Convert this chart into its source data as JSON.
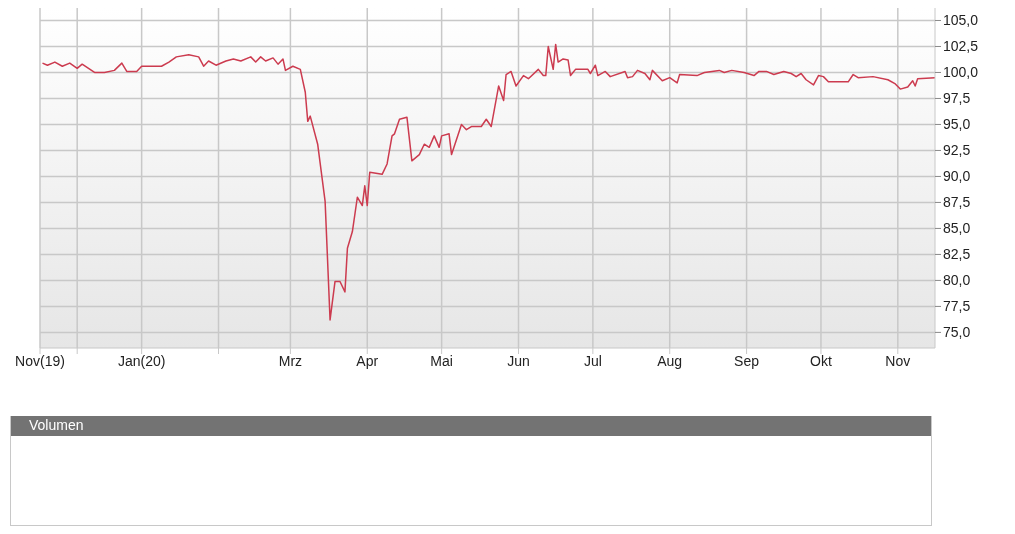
{
  "chart_data": [
    {
      "type": "line",
      "color": "#cc3b4f",
      "line_style": "solid",
      "marker": "none",
      "grid": true,
      "legend": false,
      "x": [
        "2019-11-22",
        "2019-11-24",
        "2019-11-27",
        "2019-11-30",
        "2019-12-03",
        "2019-12-06",
        "2019-12-08",
        "2019-12-13",
        "2019-12-17",
        "2019-12-21",
        "2019-12-24",
        "2019-12-26",
        "2019-12-30",
        "2020-01-01",
        "2020-01-06",
        "2020-01-09",
        "2020-01-12",
        "2020-01-15",
        "2020-01-20",
        "2020-01-24",
        "2020-01-26",
        "2020-01-28",
        "2020-01-31",
        "2020-02-04",
        "2020-02-07",
        "2020-02-10",
        "2020-02-14",
        "2020-02-16",
        "2020-02-18",
        "2020-02-20",
        "2020-02-23",
        "2020-02-25",
        "2020-02-27",
        "2020-02-28",
        "2020-03-02",
        "2020-03-05",
        "2020-03-07",
        "2020-03-08",
        "2020-03-09",
        "2020-03-12",
        "2020-03-15",
        "2020-03-17",
        "2020-03-19",
        "2020-03-21",
        "2020-03-23",
        "2020-03-24",
        "2020-03-26",
        "2020-03-28",
        "2020-03-30",
        "2020-03-31",
        "2020-04-01",
        "2020-04-02",
        "2020-04-07",
        "2020-04-09",
        "2020-04-11",
        "2020-04-12",
        "2020-04-14",
        "2020-04-17",
        "2020-04-19",
        "2020-04-22",
        "2020-04-24",
        "2020-04-26",
        "2020-04-28",
        "2020-04-30",
        "2020-05-01",
        "2020-05-04",
        "2020-05-05",
        "2020-05-09",
        "2020-05-11",
        "2020-05-13",
        "2020-05-17",
        "2020-05-19",
        "2020-05-21",
        "2020-05-24",
        "2020-05-26",
        "2020-05-27",
        "2020-05-29",
        "2020-05-31",
        "2020-06-03",
        "2020-06-05",
        "2020-06-09",
        "2020-06-11",
        "2020-06-12",
        "2020-06-13",
        "2020-06-15",
        "2020-06-16",
        "2020-06-17",
        "2020-06-19",
        "2020-06-21",
        "2020-06-22",
        "2020-06-24",
        "2020-06-29",
        "2020-06-30",
        "2020-07-02",
        "2020-07-03",
        "2020-07-06",
        "2020-07-08",
        "2020-07-14",
        "2020-07-15",
        "2020-07-17",
        "2020-07-19",
        "2020-07-22",
        "2020-07-24",
        "2020-07-25",
        "2020-07-29",
        "2020-08-01",
        "2020-08-04",
        "2020-08-05",
        "2020-08-12",
        "2020-08-15",
        "2020-08-21",
        "2020-08-23",
        "2020-08-26",
        "2020-08-31",
        "2020-09-04",
        "2020-09-06",
        "2020-09-09",
        "2020-09-12",
        "2020-09-16",
        "2020-09-19",
        "2020-09-21",
        "2020-09-23",
        "2020-09-25",
        "2020-09-28",
        "2020-09-30",
        "2020-10-02",
        "2020-10-04",
        "2020-10-12",
        "2020-10-14",
        "2020-10-16",
        "2020-10-22",
        "2020-10-28",
        "2020-10-31",
        "2020-11-02",
        "2020-11-05",
        "2020-11-07",
        "2020-11-08",
        "2020-11-09",
        "2020-11-16"
      ],
      "values": [
        100.9,
        100.7,
        101.0,
        100.6,
        100.9,
        100.4,
        100.8,
        100.0,
        100.0,
        100.2,
        100.9,
        100.1,
        100.1,
        100.6,
        100.6,
        100.6,
        101.0,
        101.5,
        101.7,
        101.5,
        100.6,
        101.1,
        100.7,
        101.1,
        101.3,
        101.1,
        101.5,
        101.0,
        101.5,
        101.1,
        101.4,
        100.8,
        101.3,
        100.2,
        100.6,
        100.3,
        98.1,
        95.3,
        95.8,
        93.1,
        87.6,
        76.2,
        79.9,
        79.9,
        78.9,
        83.1,
        84.7,
        88.0,
        87.2,
        89.1,
        87.2,
        90.4,
        90.2,
        91.2,
        93.9,
        94.1,
        95.5,
        95.7,
        91.5,
        92.1,
        93.1,
        92.8,
        93.9,
        92.8,
        93.9,
        94.1,
        92.1,
        95.0,
        94.5,
        94.8,
        94.8,
        95.5,
        94.8,
        98.7,
        97.3,
        99.8,
        100.1,
        98.7,
        99.7,
        99.4,
        100.3,
        99.7,
        99.7,
        102.5,
        100.3,
        102.7,
        101.0,
        101.3,
        101.2,
        99.7,
        100.3,
        100.3,
        99.9,
        100.7,
        99.7,
        100.1,
        99.6,
        100.1,
        99.5,
        99.6,
        100.2,
        99.9,
        99.3,
        100.2,
        99.2,
        99.5,
        99.0,
        99.8,
        99.7,
        100.0,
        100.2,
        100.0,
        100.2,
        100.0,
        99.7,
        100.1,
        100.1,
        99.8,
        100.1,
        99.9,
        99.6,
        99.9,
        99.3,
        98.8,
        99.7,
        99.6,
        99.1,
        99.1,
        99.8,
        99.5,
        99.6,
        99.3,
        98.9,
        98.4,
        98.6,
        99.2,
        98.7,
        99.4,
        99.5
      ],
      "xlim": [
        "2019-11-21",
        "2020-11-16"
      ],
      "xticks": [
        {
          "value": "2019-11-21",
          "label": "Nov(19)"
        },
        {
          "value": "2019-12-06",
          "label": null
        },
        {
          "value": "2020-01-01",
          "label": "Jan(20)"
        },
        {
          "value": "2020-02-01",
          "label": null
        },
        {
          "value": "2020-03-01",
          "label": "Mrz"
        },
        {
          "value": "2020-04-01",
          "label": "Apr"
        },
        {
          "value": "2020-05-01",
          "label": "Mai"
        },
        {
          "value": "2020-06-01",
          "label": "Jun"
        },
        {
          "value": "2020-07-01",
          "label": "Jul"
        },
        {
          "value": "2020-08-01",
          "label": "Aug"
        },
        {
          "value": "2020-09-01",
          "label": "Sep"
        },
        {
          "value": "2020-10-01",
          "label": "Okt"
        },
        {
          "value": "2020-11-01",
          "label": "Nov"
        }
      ],
      "ylim": [
        73.5,
        106.2
      ],
      "yticks": [
        {
          "value": 75,
          "label": "75,0"
        },
        {
          "value": 77.5,
          "label": "77,5"
        },
        {
          "value": 80,
          "label": "80,0"
        },
        {
          "value": 82.5,
          "label": "82,5"
        },
        {
          "value": 85,
          "label": "85,0"
        },
        {
          "value": 87.5,
          "label": "87,5"
        },
        {
          "value": 90,
          "label": "90,0"
        },
        {
          "value": 92.5,
          "label": "92,5"
        },
        {
          "value": 95,
          "label": "95,0"
        },
        {
          "value": 97.5,
          "label": "97,5"
        },
        {
          "value": 100,
          "label": "100,0"
        },
        {
          "value": 102.5,
          "label": "102,5"
        },
        {
          "value": 105,
          "label": "105,0"
        }
      ]
    },
    {
      "type": "other",
      "title": "Volumen"
    }
  ]
}
